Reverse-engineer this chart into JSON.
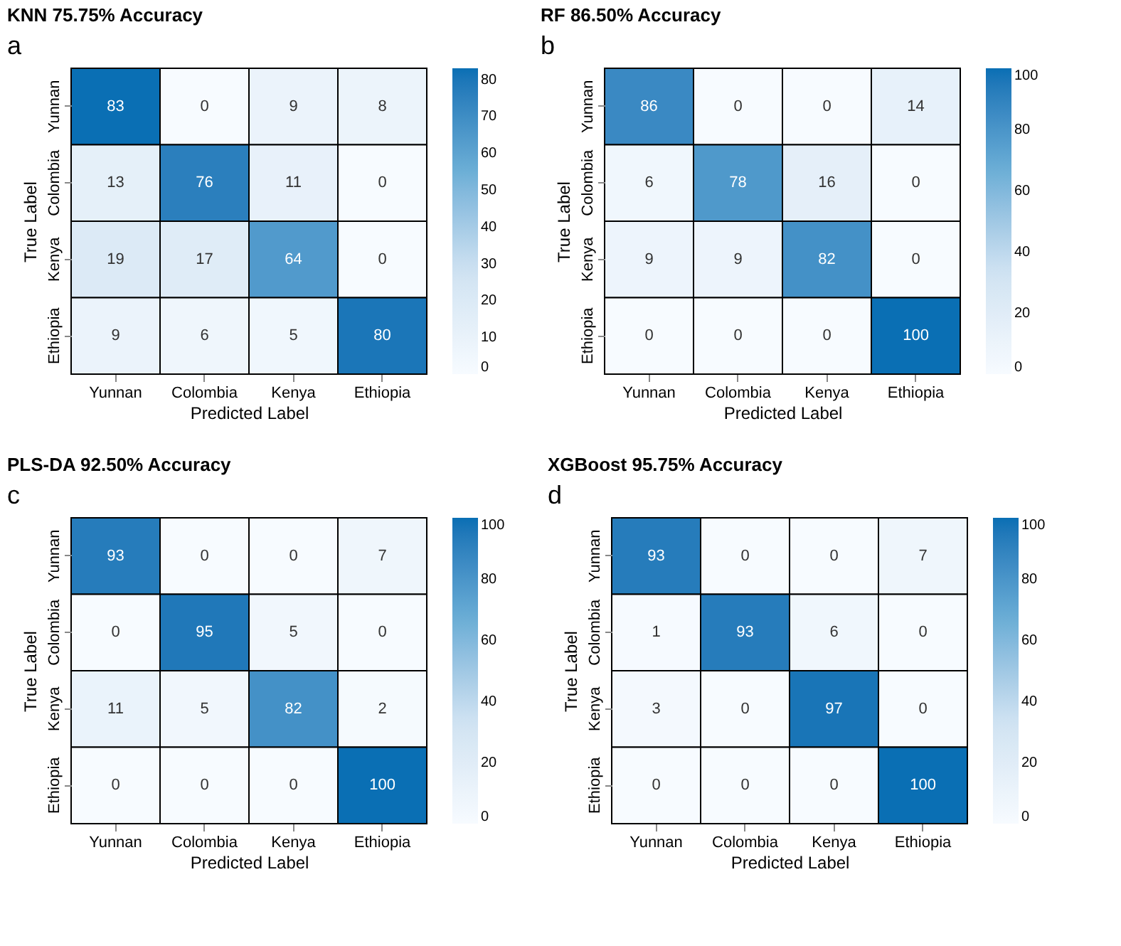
{
  "chart_data": [
    {
      "type": "heatmap",
      "title": "KNN 75.75% Accuracy",
      "xlabel": "Predicted Label",
      "ylabel": "True Label",
      "annotations": [
        "a"
      ],
      "categories": [
        "Yunnan",
        "Colombia",
        "Kenya",
        "Ethiopia"
      ],
      "y_categories": [
        "Yunnan",
        "Colombia",
        "Kenya",
        "Ethiopia"
      ],
      "cells": [
        [
          83,
          0,
          9,
          8
        ],
        [
          13,
          76,
          11,
          0
        ],
        [
          19,
          17,
          64,
          0
        ],
        [
          9,
          6,
          5,
          80
        ]
      ],
      "clim": [
        0,
        83
      ],
      "cticks": [
        0,
        10,
        20,
        30,
        40,
        50,
        60,
        70,
        80
      ],
      "data_labels": true
    },
    {
      "type": "heatmap",
      "title": "RF 86.50% Accuracy",
      "xlabel": "Predicted Label",
      "ylabel": "True Label",
      "annotations": [
        "b"
      ],
      "categories": [
        "Yunnan",
        "Colombia",
        "Kenya",
        "Ethiopia"
      ],
      "y_categories": [
        "Yunnan",
        "Colombia",
        "Kenya",
        "Ethiopia"
      ],
      "cells": [
        [
          86,
          0,
          0,
          14
        ],
        [
          6,
          78,
          16,
          0
        ],
        [
          9,
          9,
          82,
          0
        ],
        [
          0,
          0,
          0,
          100
        ]
      ],
      "clim": [
        0,
        100
      ],
      "cticks": [
        0,
        20,
        40,
        60,
        80,
        100
      ],
      "data_labels": true
    },
    {
      "type": "heatmap",
      "title": "PLS-DA 92.50% Accuracy",
      "xlabel": "Predicted Label",
      "ylabel": "True Label",
      "annotations": [
        "c"
      ],
      "categories": [
        "Yunnan",
        "Colombia",
        "Kenya",
        "Ethiopia"
      ],
      "y_categories": [
        "Yunnan",
        "Colombia",
        "Kenya",
        "Ethiopia"
      ],
      "cells": [
        [
          93,
          0,
          0,
          7
        ],
        [
          0,
          95,
          5,
          0
        ],
        [
          11,
          5,
          82,
          2
        ],
        [
          0,
          0,
          0,
          100
        ]
      ],
      "clim": [
        0,
        100
      ],
      "cticks": [
        0,
        20,
        40,
        60,
        80,
        100
      ],
      "data_labels": true
    },
    {
      "type": "heatmap",
      "title": "XGBoost 95.75% Accuracy",
      "xlabel": "Predicted Label",
      "ylabel": "True Label",
      "annotations": [
        "d"
      ],
      "categories": [
        "Yunnan",
        "Colombia",
        "Kenya",
        "Ethiopia"
      ],
      "y_categories": [
        "Yunnan",
        "Colombia",
        "Kenya",
        "Ethiopia"
      ],
      "cells": [
        [
          93,
          0,
          0,
          7
        ],
        [
          1,
          93,
          6,
          0
        ],
        [
          3,
          0,
          97,
          0
        ],
        [
          0,
          0,
          0,
          100
        ]
      ],
      "clim": [
        0,
        100
      ],
      "cticks": [
        0,
        20,
        40,
        60,
        80,
        100
      ],
      "data_labels": true
    }
  ]
}
